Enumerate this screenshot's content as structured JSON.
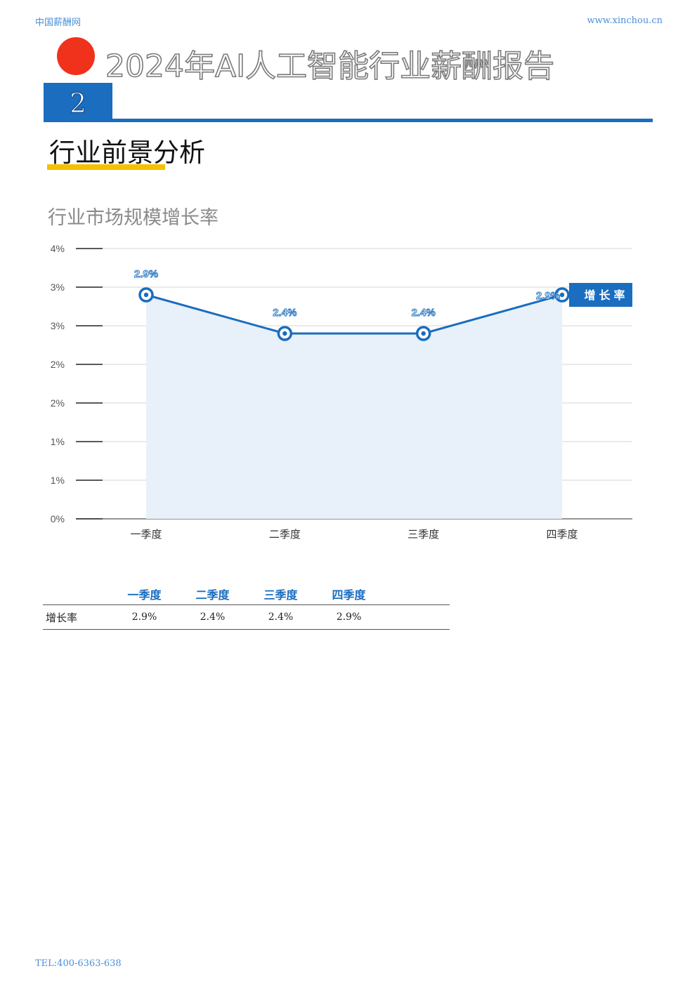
{
  "header": {
    "site_name": "中国薪酬网",
    "site_url": "www.xinchou.cn"
  },
  "report_title": "2024年AI人工智能行业薪酬报告",
  "section": {
    "number": "2",
    "heading": "行业前景分析"
  },
  "chart_title": "行业市场规模增长率",
  "chart_data": {
    "type": "area",
    "categories": [
      "一季度",
      "二季度",
      "三季度",
      "四季度"
    ],
    "series": [
      {
        "name": "增长率",
        "values": [
          2.9,
          2.4,
          2.4,
          2.9
        ],
        "labels": [
          "2.9%",
          "2.4%",
          "2.4%",
          "2.9%"
        ]
      }
    ],
    "y_ticks": [
      "0%",
      "1%",
      "1%",
      "2%",
      "2%",
      "3%",
      "3%",
      "4%"
    ],
    "ylim": [
      0,
      3.5
    ],
    "grid": true,
    "legend": "right",
    "colors": {
      "line": "#1a6dbf",
      "area": "#e8f0f9",
      "legend_bg": "#1a6dbf"
    }
  },
  "table": {
    "headers": [
      "",
      "一季度",
      "二季度",
      "三季度",
      "四季度",
      ""
    ],
    "rows": [
      {
        "label": "增长率",
        "values": [
          "2.9%",
          "2.4%",
          "2.4%",
          "2.9%"
        ]
      }
    ]
  },
  "footer": {
    "tel": "TEL:400-6363-638"
  }
}
